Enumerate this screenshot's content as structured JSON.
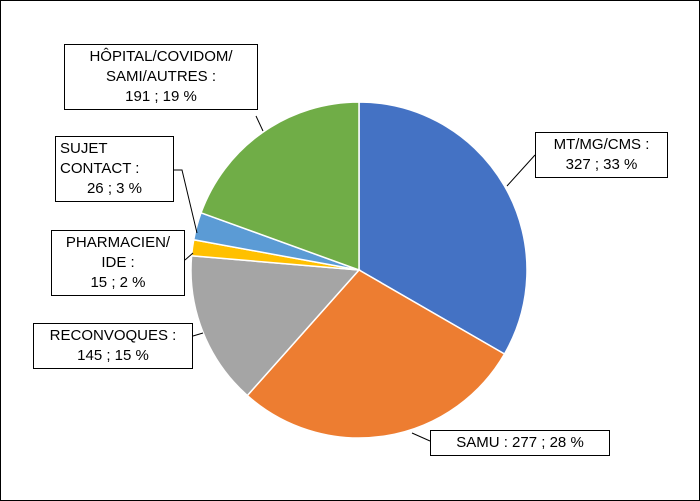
{
  "chart_data": {
    "type": "pie",
    "start_angle_deg": 0,
    "direction": "clockwise",
    "slices": [
      {
        "label_lines": [
          "MT/MG/CMS :",
          "327 ; 33 %"
        ],
        "value": 327,
        "percent": 33,
        "color": "#4472C4"
      },
      {
        "label_lines": [
          "SAMU : 277 ; 28 %"
        ],
        "value": 277,
        "percent": 28,
        "color": "#ED7D31"
      },
      {
        "label_lines": [
          "RECONVOQUES :",
          "145 ; 15 %"
        ],
        "value": 145,
        "percent": 15,
        "color": "#A5A5A5"
      },
      {
        "label_lines": [
          "PHARMACIEN/",
          "IDE :",
          "15 ; 2 %"
        ],
        "value": 15,
        "percent": 2,
        "color": "#FFC000"
      },
      {
        "label_lines": [
          "SUJET",
          "CONTACT :",
          "26 ; 3 %"
        ],
        "value": 26,
        "percent": 3,
        "color": "#5B9BD5"
      },
      {
        "label_lines": [
          "HÔPITAL/COVIDOM/",
          "SAMI/AUTRES :",
          "191 ; 19 %"
        ],
        "value": 191,
        "percent": 19,
        "color": "#70AD47"
      }
    ]
  }
}
